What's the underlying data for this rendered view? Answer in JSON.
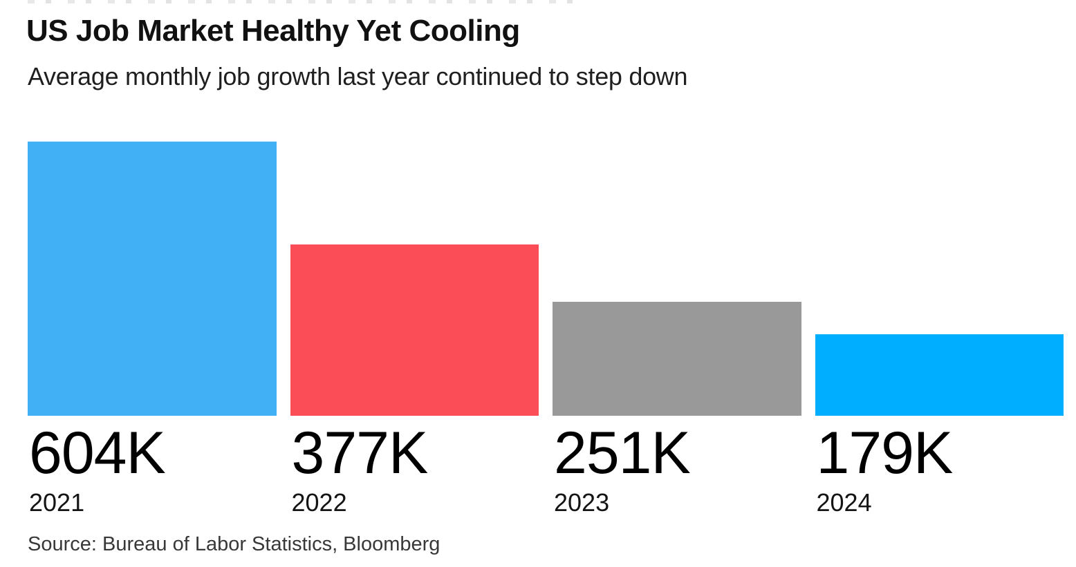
{
  "header": {
    "title": "US Job Market Healthy Yet Cooling",
    "subtitle": "Average monthly job growth last year continued to step down"
  },
  "chart_data": {
    "type": "bar",
    "title": "US Job Market Healthy Yet Cooling",
    "subtitle": "Average monthly job growth last year continued to step down",
    "categories": [
      "2021",
      "2022",
      "2023",
      "2024"
    ],
    "values": [
      604,
      377,
      251,
      179
    ],
    "value_labels": [
      "604K",
      "377K",
      "251K",
      "179K"
    ],
    "unit": "K jobs per month",
    "xlabel": "",
    "ylabel": "",
    "ylim": [
      0,
      604
    ],
    "grid": false,
    "legend": "none",
    "bar_colors": [
      "#42b0f5",
      "#fb4d57",
      "#999999",
      "#00aeff"
    ],
    "label_position": "below-bars-left-aligned"
  },
  "footer": {
    "source": "Source: Bureau of Labor Statistics, Bloomberg"
  }
}
